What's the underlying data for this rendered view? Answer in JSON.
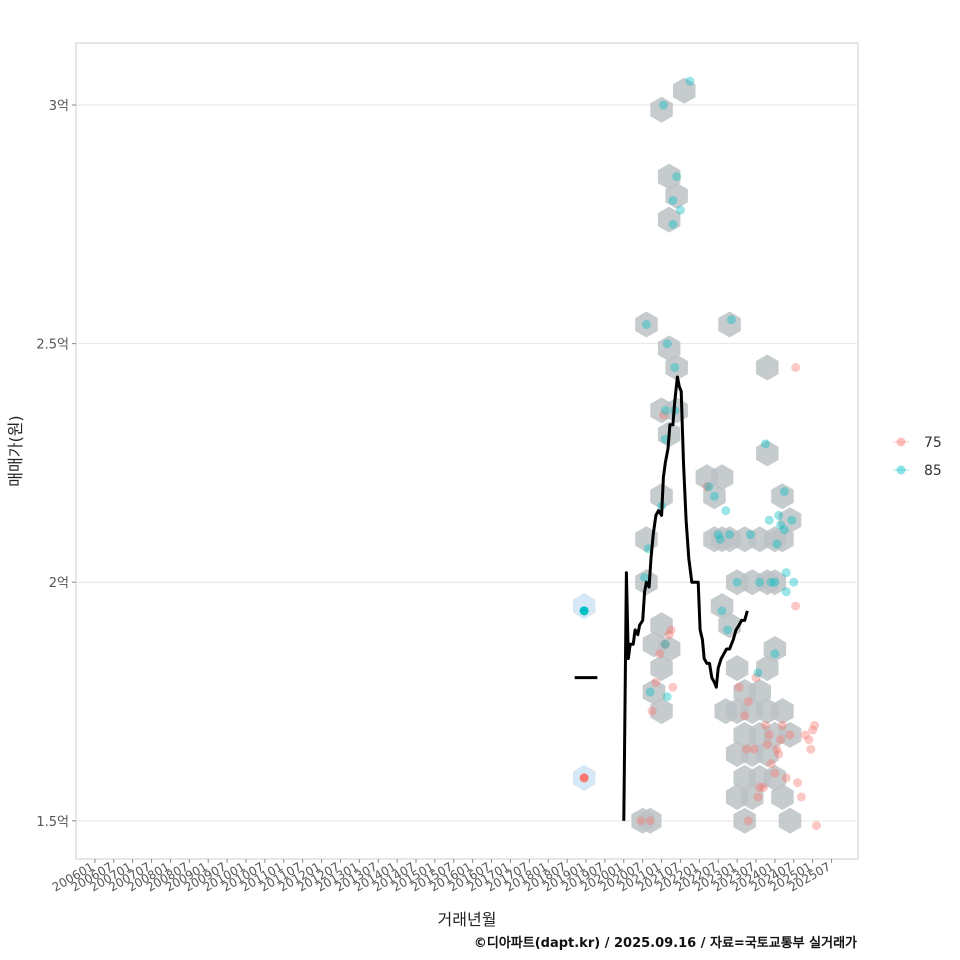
{
  "chart_data": {
    "type": "scatter",
    "title": "",
    "xlabel": "거래년월",
    "ylabel": "매매가(원)",
    "caption": "©디아파트(dapt.kr) / 2025.09.16 / 자료=국토교통부 실거래가",
    "x_tick_labels": [
      "200601",
      "200607",
      "200701",
      "200707",
      "200801",
      "200807",
      "200901",
      "200907",
      "201001",
      "201007",
      "201101",
      "201107",
      "201201",
      "201207",
      "201301",
      "201307",
      "201401",
      "201407",
      "201501",
      "201507",
      "201601",
      "201607",
      "201701",
      "201707",
      "201801",
      "201807",
      "201901",
      "201907",
      "202001",
      "202007",
      "202101",
      "202107",
      "202201",
      "202207",
      "202301",
      "202307",
      "202401",
      "202407",
      "202501",
      "202507"
    ],
    "xlim": [
      2005.5,
      2026.2
    ],
    "ylim": [
      1.42,
      3.13
    ],
    "y_ticks": [
      {
        "value": 1.5,
        "label": "1.5억"
      },
      {
        "value": 2.0,
        "label": "2억"
      },
      {
        "value": 2.5,
        "label": "2.5억"
      },
      {
        "value": 3.0,
        "label": "3억"
      }
    ],
    "legend": {
      "position": "right",
      "items": [
        {
          "label": "75",
          "color": "#F8766D"
        },
        {
          "label": "85",
          "color": "#00BFC4"
        }
      ]
    },
    "colors": {
      "s75": "#F8766D",
      "s85": "#00BFC4",
      "hex": "#BCC2C6",
      "hex_early": "#D6E8F5",
      "line": "#000000",
      "grid": "#E5E5E5",
      "border": "#CCCCCC"
    },
    "series": [
      {
        "name": "75",
        "points": [
          [
            2018.95,
            1.59
          ],
          [
            2020.45,
            1.5
          ],
          [
            2020.7,
            1.5
          ],
          [
            2020.85,
            1.79
          ],
          [
            2020.95,
            1.85
          ],
          [
            2021.1,
            1.87
          ],
          [
            2021.2,
            1.89
          ],
          [
            2021.3,
            1.78
          ],
          [
            2021.05,
            2.35
          ],
          [
            2021.25,
            1.9
          ],
          [
            2020.75,
            1.73
          ],
          [
            2022.2,
            2.2
          ],
          [
            2023.05,
            1.78
          ],
          [
            2023.2,
            1.72
          ],
          [
            2023.25,
            1.65
          ],
          [
            2023.3,
            1.75
          ],
          [
            2023.45,
            1.65
          ],
          [
            2023.55,
            1.55
          ],
          [
            2023.6,
            1.57
          ],
          [
            2023.75,
            1.7
          ],
          [
            2023.8,
            1.66
          ],
          [
            2023.9,
            1.62
          ],
          [
            2024.0,
            1.6
          ],
          [
            2024.05,
            1.65
          ],
          [
            2024.15,
            1.67
          ],
          [
            2024.3,
            1.59
          ],
          [
            2024.4,
            1.68
          ],
          [
            2024.6,
            1.58
          ],
          [
            2024.7,
            1.55
          ],
          [
            2024.8,
            1.68
          ],
          [
            2024.9,
            1.67
          ],
          [
            2025.0,
            1.69
          ],
          [
            2025.05,
            1.7
          ],
          [
            2025.1,
            1.49
          ],
          [
            2024.55,
            2.45
          ],
          [
            2024.55,
            1.95
          ],
          [
            2023.3,
            1.5
          ],
          [
            2023.5,
            1.8
          ],
          [
            2023.7,
            1.57
          ],
          [
            2024.2,
            1.7
          ],
          [
            2023.85,
            1.68
          ],
          [
            2024.1,
            1.64
          ],
          [
            2024.95,
            1.65
          ]
        ]
      },
      {
        "name": "85",
        "points": [
          [
            2018.95,
            1.94
          ],
          [
            2020.55,
            2.01
          ],
          [
            2020.6,
            2.54
          ],
          [
            2020.65,
            2.07
          ],
          [
            2020.7,
            1.77
          ],
          [
            2021.0,
            2.16
          ],
          [
            2021.05,
            3.0
          ],
          [
            2021.15,
            2.5
          ],
          [
            2021.1,
            2.36
          ],
          [
            2021.1,
            2.3
          ],
          [
            2021.15,
            1.76
          ],
          [
            2021.1,
            1.87
          ],
          [
            2021.3,
            2.75
          ],
          [
            2021.4,
            2.85
          ],
          [
            2021.5,
            2.78
          ],
          [
            2021.35,
            2.45
          ],
          [
            2021.3,
            2.8
          ],
          [
            2021.35,
            2.36
          ],
          [
            2021.75,
            3.05
          ],
          [
            2022.25,
            2.2
          ],
          [
            2022.4,
            2.18
          ],
          [
            2022.5,
            2.1
          ],
          [
            2022.55,
            2.09
          ],
          [
            2022.7,
            2.15
          ],
          [
            2022.85,
            2.55
          ],
          [
            2022.8,
            2.1
          ],
          [
            2022.6,
            1.94
          ],
          [
            2023.0,
            2.0
          ],
          [
            2023.35,
            2.1
          ],
          [
            2023.6,
            2.0
          ],
          [
            2023.75,
            2.29
          ],
          [
            2023.85,
            2.13
          ],
          [
            2023.9,
            2.0
          ],
          [
            2024.0,
            2.0
          ],
          [
            2024.05,
            2.08
          ],
          [
            2024.1,
            2.14
          ],
          [
            2024.15,
            2.12
          ],
          [
            2024.25,
            2.19
          ],
          [
            2024.25,
            2.11
          ],
          [
            2024.3,
            2.02
          ],
          [
            2024.3,
            1.98
          ],
          [
            2024.45,
            2.13
          ],
          [
            2024.0,
            1.85
          ],
          [
            2023.55,
            1.81
          ],
          [
            2022.75,
            1.9
          ],
          [
            2024.5,
            2.0
          ]
        ]
      }
    ],
    "hex_bins": [
      {
        "x": 2018.95,
        "y": 1.59,
        "early": true
      },
      {
        "x": 2018.95,
        "y": 1.95,
        "early": true
      },
      {
        "x": 2020.5,
        "y": 1.5
      },
      {
        "x": 2020.7,
        "y": 1.5
      },
      {
        "x": 2020.6,
        "y": 2.0
      },
      {
        "x": 2020.6,
        "y": 2.09
      },
      {
        "x": 2020.6,
        "y": 2.54
      },
      {
        "x": 2020.8,
        "y": 1.77
      },
      {
        "x": 2020.8,
        "y": 1.87
      },
      {
        "x": 2021.0,
        "y": 1.73
      },
      {
        "x": 2021.0,
        "y": 1.82
      },
      {
        "x": 2021.0,
        "y": 1.91
      },
      {
        "x": 2021.0,
        "y": 2.18
      },
      {
        "x": 2021.0,
        "y": 2.36
      },
      {
        "x": 2021.0,
        "y": 2.99
      },
      {
        "x": 2021.2,
        "y": 2.31
      },
      {
        "x": 2021.2,
        "y": 2.49
      },
      {
        "x": 2021.2,
        "y": 2.76
      },
      {
        "x": 2021.2,
        "y": 2.85
      },
      {
        "x": 2021.2,
        "y": 1.86
      },
      {
        "x": 2021.4,
        "y": 2.36
      },
      {
        "x": 2021.4,
        "y": 2.45
      },
      {
        "x": 2021.4,
        "y": 2.81
      },
      {
        "x": 2021.6,
        "y": 3.03
      },
      {
        "x": 2022.2,
        "y": 2.22
      },
      {
        "x": 2022.4,
        "y": 2.18
      },
      {
        "x": 2022.4,
        "y": 2.09
      },
      {
        "x": 2022.6,
        "y": 2.22
      },
      {
        "x": 2022.6,
        "y": 1.95
      },
      {
        "x": 2022.6,
        "y": 2.09
      },
      {
        "x": 2022.8,
        "y": 2.54
      },
      {
        "x": 2022.8,
        "y": 2.09
      },
      {
        "x": 2022.8,
        "y": 1.91
      },
      {
        "x": 2022.7,
        "y": 1.73
      },
      {
        "x": 2023.0,
        "y": 2.0
      },
      {
        "x": 2023.0,
        "y": 1.82
      },
      {
        "x": 2023.0,
        "y": 1.64
      },
      {
        "x": 2023.0,
        "y": 1.73
      },
      {
        "x": 2023.0,
        "y": 1.55
      },
      {
        "x": 2023.2,
        "y": 1.77
      },
      {
        "x": 2023.2,
        "y": 1.68
      },
      {
        "x": 2023.2,
        "y": 1.5
      },
      {
        "x": 2023.2,
        "y": 1.59
      },
      {
        "x": 2023.2,
        "y": 2.09
      },
      {
        "x": 2023.4,
        "y": 1.73
      },
      {
        "x": 2023.4,
        "y": 1.64
      },
      {
        "x": 2023.4,
        "y": 1.55
      },
      {
        "x": 2023.4,
        "y": 2.0
      },
      {
        "x": 2023.6,
        "y": 1.68
      },
      {
        "x": 2023.6,
        "y": 1.59
      },
      {
        "x": 2023.6,
        "y": 2.09
      },
      {
        "x": 2023.6,
        "y": 1.77
      },
      {
        "x": 2023.8,
        "y": 1.73
      },
      {
        "x": 2023.8,
        "y": 1.64
      },
      {
        "x": 2023.8,
        "y": 1.82
      },
      {
        "x": 2023.8,
        "y": 2.0
      },
      {
        "x": 2023.8,
        "y": 2.27
      },
      {
        "x": 2023.8,
        "y": 2.45
      },
      {
        "x": 2024.0,
        "y": 1.68
      },
      {
        "x": 2024.0,
        "y": 1.59
      },
      {
        "x": 2024.0,
        "y": 1.86
      },
      {
        "x": 2024.0,
        "y": 2.09
      },
      {
        "x": 2024.0,
        "y": 2.0
      },
      {
        "x": 2024.2,
        "y": 1.73
      },
      {
        "x": 2024.2,
        "y": 1.55
      },
      {
        "x": 2024.2,
        "y": 2.18
      },
      {
        "x": 2024.2,
        "y": 2.09
      },
      {
        "x": 2024.4,
        "y": 1.68
      },
      {
        "x": 2024.4,
        "y": 1.5
      },
      {
        "x": 2024.4,
        "y": 2.13
      }
    ],
    "trend": {
      "early_segment": [
        [
          2018.7,
          1.8
        ],
        [
          2019.3,
          1.8
        ]
      ],
      "points": [
        [
          2020.0,
          1.5
        ],
        [
          2020.07,
          2.02
        ],
        [
          2020.12,
          1.84
        ],
        [
          2020.17,
          1.87
        ],
        [
          2020.25,
          1.87
        ],
        [
          2020.3,
          1.9
        ],
        [
          2020.37,
          1.89
        ],
        [
          2020.42,
          1.91
        ],
        [
          2020.5,
          1.92
        ],
        [
          2020.55,
          1.98
        ],
        [
          2020.6,
          2.0
        ],
        [
          2020.67,
          1.99
        ],
        [
          2020.72,
          2.05
        ],
        [
          2020.78,
          2.1
        ],
        [
          2020.85,
          2.14
        ],
        [
          2020.92,
          2.15
        ],
        [
          2021.0,
          2.14
        ],
        [
          2021.05,
          2.22
        ],
        [
          2021.1,
          2.25
        ],
        [
          2021.17,
          2.28
        ],
        [
          2021.22,
          2.33
        ],
        [
          2021.3,
          2.33
        ],
        [
          2021.35,
          2.38
        ],
        [
          2021.42,
          2.43
        ],
        [
          2021.47,
          2.41
        ],
        [
          2021.52,
          2.4
        ],
        [
          2021.58,
          2.25
        ],
        [
          2021.65,
          2.13
        ],
        [
          2021.72,
          2.05
        ],
        [
          2021.8,
          2.0
        ],
        [
          2021.9,
          2.0
        ],
        [
          2021.97,
          2.0
        ],
        [
          2022.02,
          1.9
        ],
        [
          2022.08,
          1.88
        ],
        [
          2022.13,
          1.84
        ],
        [
          2022.2,
          1.83
        ],
        [
          2022.27,
          1.83
        ],
        [
          2022.33,
          1.8
        ],
        [
          2022.4,
          1.79
        ],
        [
          2022.45,
          1.78
        ],
        [
          2022.5,
          1.82
        ],
        [
          2022.58,
          1.84
        ],
        [
          2022.65,
          1.85
        ],
        [
          2022.72,
          1.86
        ],
        [
          2022.8,
          1.86
        ],
        [
          2022.85,
          1.87
        ],
        [
          2022.9,
          1.88
        ],
        [
          2022.97,
          1.9
        ],
        [
          2023.05,
          1.91
        ],
        [
          2023.12,
          1.92
        ],
        [
          2023.2,
          1.92
        ],
        [
          2023.27,
          1.94
        ]
      ]
    }
  }
}
